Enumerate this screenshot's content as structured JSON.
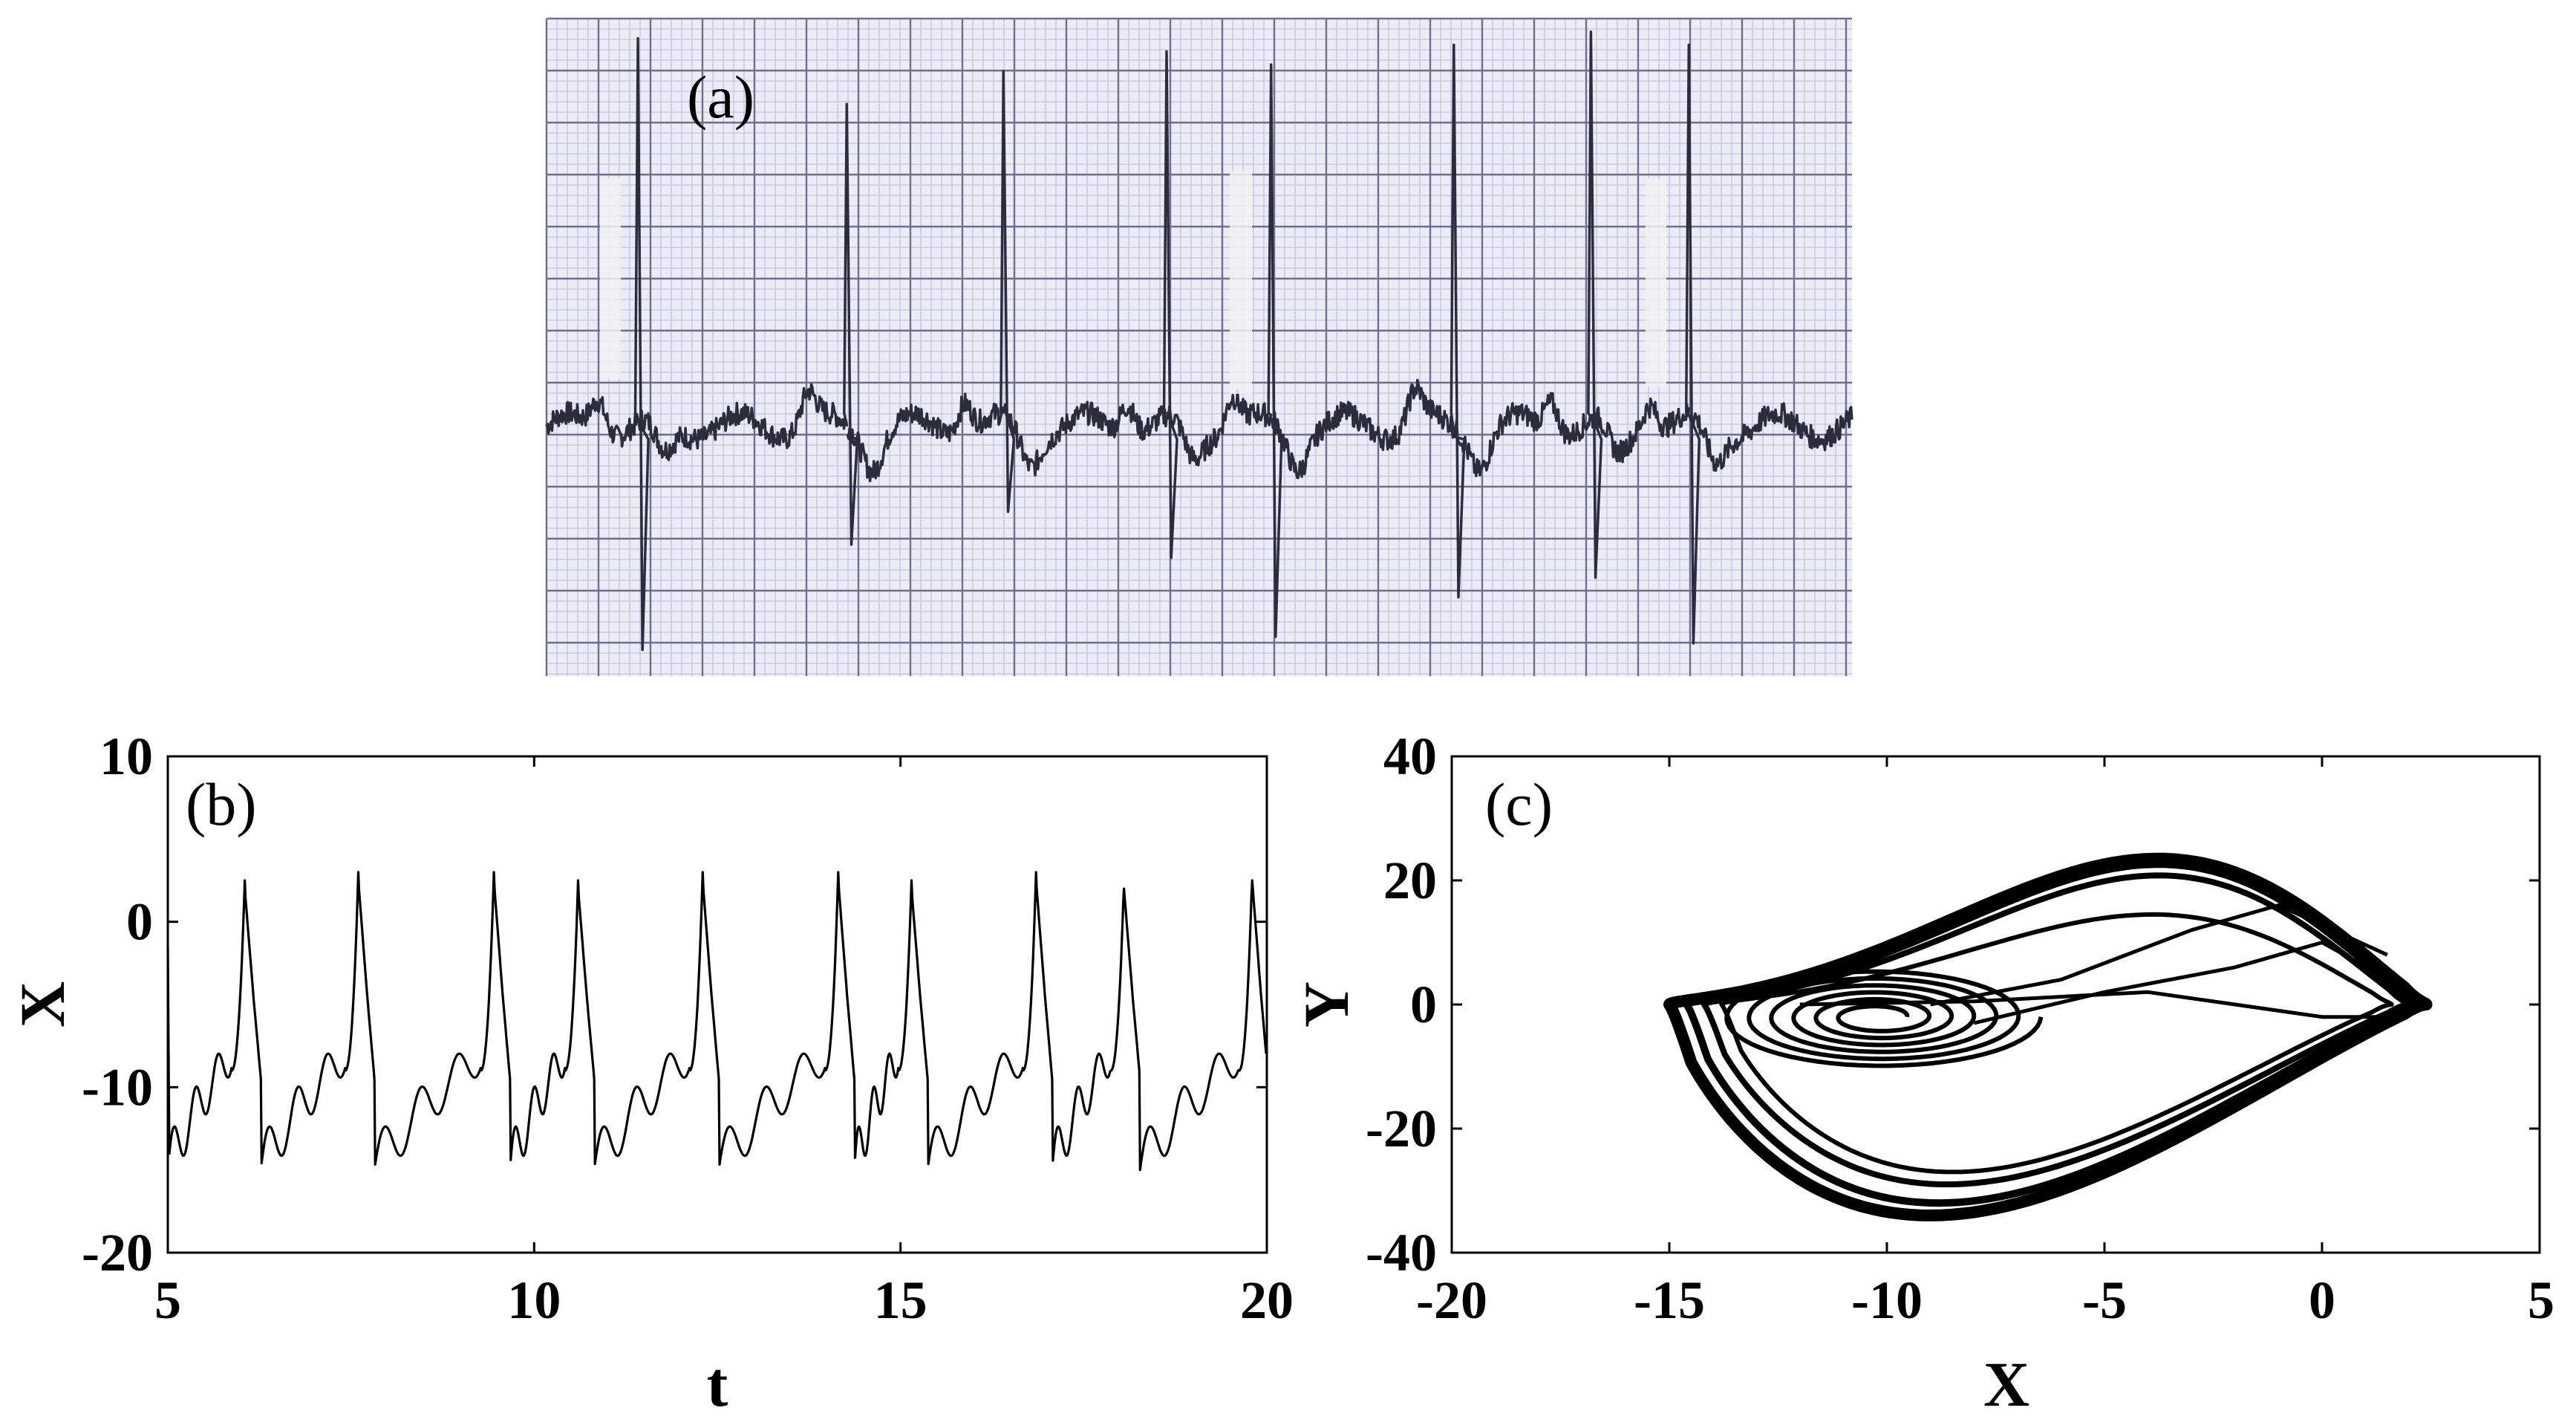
{
  "colors": {
    "ecg_paper": "#ecebf6",
    "ecg_grid_major": "#6e6f8e",
    "ecg_grid_minor": "#b9b9d6",
    "ecg_trace": "#2c2c3c",
    "plot_line": "#000000",
    "axis": "#000000"
  },
  "chart_data": [
    {
      "id": "a",
      "type": "line",
      "panel_label": "(a)",
      "description_kind": "ecg-strip-photo",
      "grid": true,
      "r_peak_positions": [
        0.07,
        0.23,
        0.35,
        0.475,
        0.555,
        0.695,
        0.8,
        0.875
      ],
      "r_peak_heights": [
        0.97,
        0.87,
        0.92,
        0.95,
        0.93,
        0.96,
        0.98,
        0.96
      ],
      "s_depths": [
        0.04,
        0.2,
        0.25,
        0.18,
        0.06,
        0.12,
        0.15,
        0.05
      ]
    },
    {
      "id": "b",
      "type": "line",
      "panel_label": "(b)",
      "xlabel": "t",
      "ylabel": "X",
      "xlim": [
        5,
        20
      ],
      "ylim": [
        -20,
        10
      ],
      "xticks": [
        "5",
        "10",
        "15",
        "20"
      ],
      "yticks": [
        "10",
        "0",
        "-10",
        "-20"
      ],
      "xtick_values": [
        5,
        10,
        15,
        20
      ],
      "ytick_values": [
        10,
        0,
        -10,
        -20
      ],
      "grid": false,
      "spike_times": [
        6.05,
        7.6,
        9.45,
        10.6,
        12.3,
        14.15,
        15.15,
        16.85,
        18.05,
        19.8
      ],
      "spike_peaks": [
        2,
        2.5,
        2.5,
        2,
        2.5,
        2.5,
        2,
        2.5,
        2,
        2.5
      ],
      "baseline_min": -15,
      "plateau_level": -9.5
    },
    {
      "id": "c",
      "type": "line",
      "panel_label": "(c)",
      "xlabel": "X",
      "ylabel": "Y",
      "xlim": [
        -20,
        5
      ],
      "ylim": [
        -40,
        40
      ],
      "xticks": [
        "-20",
        "-15",
        "-10",
        "-5",
        "0",
        "5"
      ],
      "yticks": [
        "40",
        "20",
        "0",
        "-20",
        "-40"
      ],
      "xtick_values": [
        -20,
        -15,
        -10,
        -5,
        0,
        5
      ],
      "ytick_values": [
        40,
        20,
        0,
        -20,
        -40
      ],
      "grid": false,
      "attractor_x_range": [
        -15,
        2.5
      ],
      "attractor_y_range": [
        -34,
        25
      ]
    }
  ]
}
